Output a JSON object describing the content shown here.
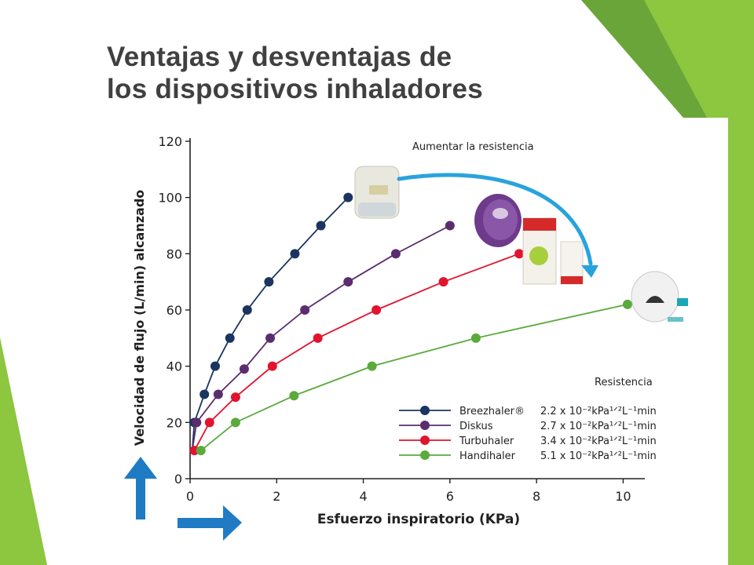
{
  "slide": {
    "title_line1": "Ventajas y desventajas de",
    "title_line2": "los dispositivos inhaladores"
  },
  "colors": {
    "green_light": "#8dc63f",
    "green_mid": "#6aa53a",
    "green_dark": "#4f8a2b",
    "arrow_blue": "#1e7bc4",
    "curve_arrow_blue": "#29a3dd"
  },
  "chart_data": {
    "type": "line",
    "xlabel": "Esfuerzo inspiratorio (KPa)",
    "ylabel": "Velocidad de flujo (L/min) alcanzado",
    "xlim": [
      0,
      10.5
    ],
    "ylim": [
      0,
      120
    ],
    "xticks": [
      0,
      2,
      4,
      6,
      8,
      10
    ],
    "yticks": [
      0,
      20,
      40,
      60,
      80,
      100,
      120
    ],
    "grid": false,
    "annotation": "Aumentar la resistencia",
    "legend_title": "Resistencia",
    "legend_position": "bottom-right",
    "series": [
      {
        "name": "Breezhaler®",
        "resistance": "2.2 x 10⁻²kPa¹ᐟ²L⁻¹min",
        "color": "#1b3560",
        "x": [
          0.1,
          0.33,
          0.58,
          0.92,
          1.32,
          1.82,
          2.42,
          3.02,
          3.65
        ],
        "y": [
          20,
          30,
          40,
          50,
          60,
          70,
          80,
          90,
          100
        ]
      },
      {
        "name": "Diskus",
        "resistance": "2.7 x 10⁻²kPa¹ᐟ²L⁻¹min",
        "color": "#5b2d6e",
        "x": [
          0.15,
          0.65,
          1.25,
          1.85,
          2.65,
          3.65,
          4.75,
          6.0
        ],
        "y": [
          20,
          30,
          39,
          50,
          60,
          70,
          80,
          90
        ]
      },
      {
        "name": "Turbuhaler",
        "resistance": "3.4 x 10⁻²kPa¹ᐟ²L⁻¹min",
        "color": "#e0142f",
        "x": [
          0.1,
          0.45,
          1.05,
          1.9,
          2.95,
          4.3,
          5.85,
          7.6
        ],
        "y": [
          10,
          20,
          29,
          40,
          50,
          60,
          70,
          80
        ]
      },
      {
        "name": "Handihaler",
        "resistance": "5.1 x 10⁻²kPa¹ᐟ²L⁻¹min",
        "color": "#5aaa3c",
        "x": [
          0.25,
          1.05,
          2.4,
          4.2,
          6.6,
          10.1
        ],
        "y": [
          10,
          20,
          29.5,
          40,
          50,
          62
        ]
      }
    ]
  }
}
